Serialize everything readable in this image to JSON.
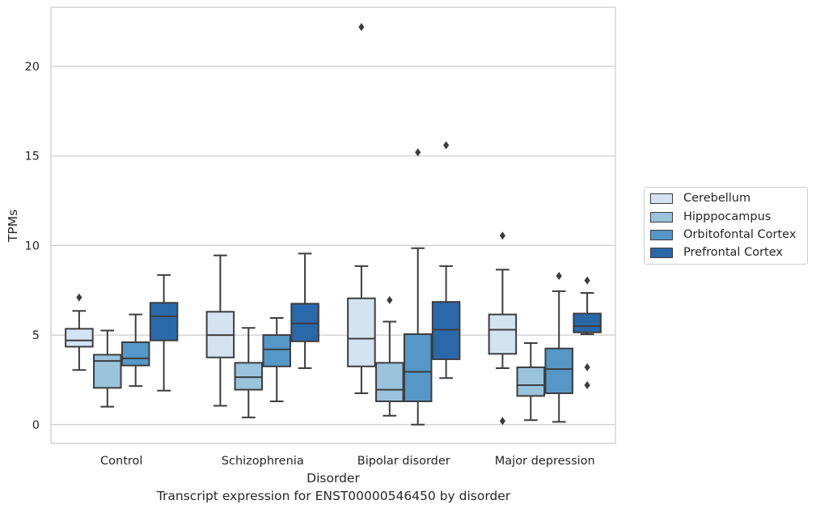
{
  "chart_data": {
    "type": "box",
    "xlabel": "Disorder",
    "ylabel": "TPMs",
    "caption": "Transcript expression for ENST00000546450 by disorder",
    "categories": [
      "Control",
      "Schizophrenia",
      "Bipolar disorder",
      "Major depression"
    ],
    "ylim": [
      -1.05,
      23.3
    ],
    "yticks": [
      0,
      5,
      10,
      15,
      20
    ],
    "grid": "horizontal",
    "legend_position": "right",
    "series": [
      {
        "name": "Cerebellum",
        "color": "#d3e3f2",
        "boxes": [
          {
            "whislo": 3.05,
            "q1": 4.35,
            "med": 4.7,
            "q3": 5.35,
            "whishi": 6.35,
            "fliers": [
              7.1
            ]
          },
          {
            "whislo": 1.05,
            "q1": 3.75,
            "med": 5.0,
            "q3": 6.3,
            "whishi": 9.45,
            "fliers": []
          },
          {
            "whislo": 1.75,
            "q1": 3.25,
            "med": 4.8,
            "q3": 7.05,
            "whishi": 8.85,
            "fliers": [
              22.2
            ]
          },
          {
            "whislo": 3.15,
            "q1": 3.95,
            "med": 5.3,
            "q3": 6.15,
            "whishi": 8.65,
            "fliers": [
              10.55,
              0.2
            ]
          }
        ]
      },
      {
        "name": "Hipppocampus",
        "color": "#9ac3dc",
        "boxes": [
          {
            "whislo": 1.0,
            "q1": 2.05,
            "med": 3.55,
            "q3": 3.9,
            "whishi": 5.25,
            "fliers": []
          },
          {
            "whislo": 0.4,
            "q1": 1.95,
            "med": 2.65,
            "q3": 3.45,
            "whishi": 5.4,
            "fliers": []
          },
          {
            "whislo": 0.5,
            "q1": 1.3,
            "med": 1.95,
            "q3": 3.45,
            "whishi": 5.75,
            "fliers": [
              6.95
            ]
          },
          {
            "whislo": 0.25,
            "q1": 1.6,
            "med": 2.2,
            "q3": 3.2,
            "whishi": 4.55,
            "fliers": []
          }
        ]
      },
      {
        "name": "Orbitofontal Cortex",
        "color": "#5597c6",
        "boxes": [
          {
            "whislo": 2.15,
            "q1": 3.3,
            "med": 3.7,
            "q3": 4.6,
            "whishi": 6.15,
            "fliers": []
          },
          {
            "whislo": 1.3,
            "q1": 3.25,
            "med": 4.2,
            "q3": 5.0,
            "whishi": 5.95,
            "fliers": []
          },
          {
            "whislo": 0.0,
            "q1": 1.3,
            "med": 2.95,
            "q3": 5.05,
            "whishi": 9.85,
            "fliers": [
              15.2
            ]
          },
          {
            "whislo": 0.15,
            "q1": 1.75,
            "med": 3.1,
            "q3": 4.25,
            "whishi": 7.45,
            "fliers": [
              8.3
            ]
          }
        ]
      },
      {
        "name": "Prefrontal Cortex",
        "color": "#2a69a9",
        "boxes": [
          {
            "whislo": 1.9,
            "q1": 4.7,
            "med": 6.05,
            "q3": 6.8,
            "whishi": 8.35,
            "fliers": []
          },
          {
            "whislo": 3.15,
            "q1": 4.65,
            "med": 5.65,
            "q3": 6.75,
            "whishi": 9.55,
            "fliers": []
          },
          {
            "whislo": 2.6,
            "q1": 3.65,
            "med": 5.3,
            "q3": 6.85,
            "whishi": 8.85,
            "fliers": [
              15.6
            ]
          },
          {
            "whislo": 5.05,
            "q1": 5.15,
            "med": 5.5,
            "q3": 6.2,
            "whishi": 7.35,
            "fliers": [
              8.05,
              3.2,
              2.2
            ]
          }
        ]
      }
    ]
  }
}
